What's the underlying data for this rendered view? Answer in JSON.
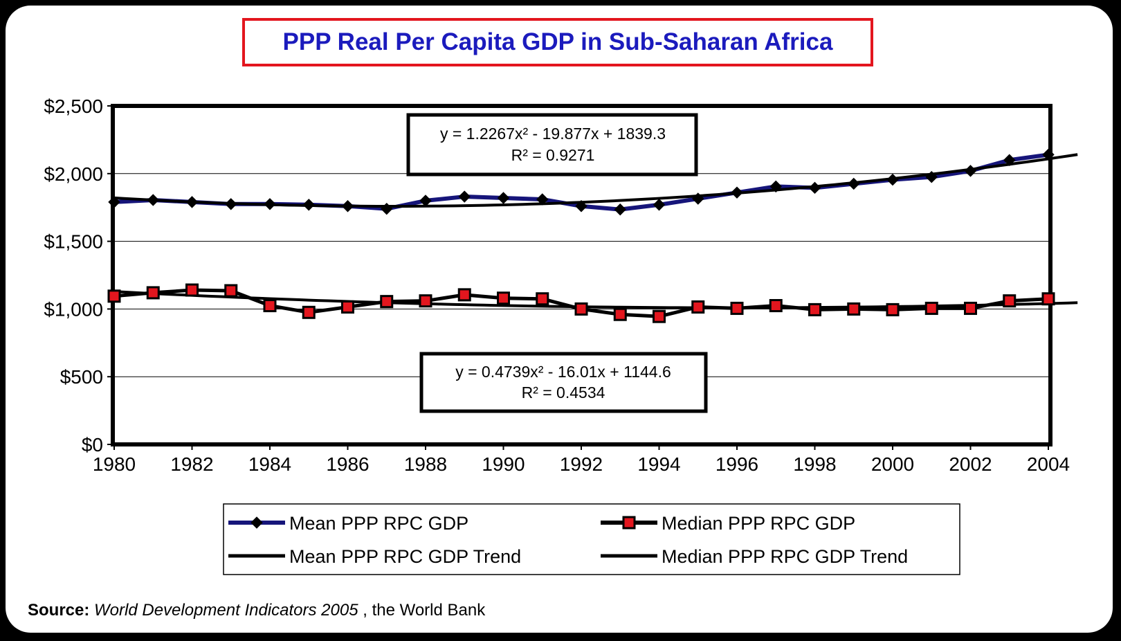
{
  "chart_data": {
    "type": "line",
    "title": "PPP Real Per Capita GDP in Sub-Saharan Africa",
    "x": [
      1980,
      1981,
      1982,
      1983,
      1984,
      1985,
      1986,
      1987,
      1988,
      1989,
      1990,
      1991,
      1992,
      1993,
      1994,
      1995,
      1996,
      1997,
      1998,
      1999,
      2000,
      2001,
      2002,
      2003,
      2004
    ],
    "x_tick_labels": [
      "1980",
      "1982",
      "1984",
      "1986",
      "1988",
      "1990",
      "1992",
      "1994",
      "1996",
      "1998",
      "2000",
      "2002",
      "2004"
    ],
    "y_tick_labels": [
      "$2,500",
      "$2,000",
      "$1,500",
      "$1,000",
      "$500",
      "$0"
    ],
    "ylim": [
      0,
      2500
    ],
    "grid": true,
    "legend_position": "bottom",
    "series": [
      {
        "name": "Mean PPP RPC GDP",
        "color": "#16157a",
        "marker": "diamond",
        "values": [
          1790,
          1805,
          1790,
          1775,
          1775,
          1770,
          1760,
          1740,
          1800,
          1830,
          1820,
          1810,
          1760,
          1735,
          1770,
          1815,
          1860,
          1905,
          1895,
          1925,
          1955,
          1975,
          2020,
          2100,
          2140
        ]
      },
      {
        "name": "Median PPP RPC GDP",
        "color": "#000000",
        "marker": "square",
        "marker_fill": "#e3161e",
        "values": [
          1095,
          1120,
          1140,
          1135,
          1025,
          975,
          1015,
          1055,
          1060,
          1105,
          1080,
          1075,
          1000,
          960,
          945,
          1015,
          1005,
          1025,
          995,
          1000,
          995,
          1005,
          1005,
          1060,
          1075
        ]
      },
      {
        "name": "Mean PPP RPC GDP Trend",
        "color": "#000000",
        "trend": true,
        "coefficients": [
          1.2267,
          -19.877,
          1839.3
        ]
      },
      {
        "name": "Median PPP RPC GDP Trend",
        "color": "#000000",
        "trend": true,
        "coefficients": [
          0.4739,
          -16.01,
          1144.6
        ]
      }
    ],
    "annotations": [
      {
        "line1": "y = 1.2267x² - 19.877x + 1839.3",
        "line2": "R² = 0.9271"
      },
      {
        "line1": "y = 0.4739x² - 16.01x + 1144.6",
        "line2": "R² = 0.4534"
      }
    ]
  },
  "source": {
    "label": "Source:",
    "title": "World Development Indicators 2005",
    "rest": " , the World Bank"
  }
}
